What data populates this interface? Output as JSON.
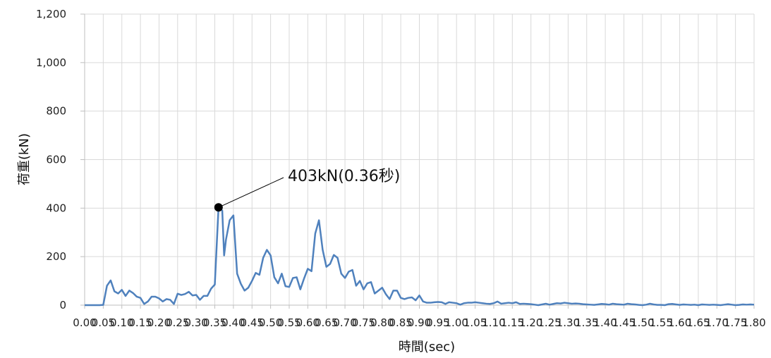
{
  "chart_data": {
    "type": "line",
    "title": "",
    "xlabel": "時間(sec)",
    "ylabel": "荷重(kN)",
    "xlim": [
      0,
      1.8
    ],
    "ylim": [
      0,
      1200
    ],
    "x_ticks": [
      "0.00",
      "0.05",
      "0.10",
      "0.15",
      "0.20",
      "0.25",
      "0.30",
      "0.35",
      "0.40",
      "0.45",
      "0.50",
      "0.55",
      "0.60",
      "0.65",
      "0.70",
      "0.75",
      "0.80",
      "0.85",
      "0.90",
      "0.95",
      "1.00",
      "1.05",
      "1.10",
      "1.15",
      "1.20",
      "1.25",
      "1.30",
      "1.35",
      "1.40",
      "1.45",
      "1.50",
      "1.55",
      "1.60",
      "1.65",
      "1.70",
      "1.75",
      "1.80"
    ],
    "y_ticks": [
      "0",
      "200",
      "400",
      "600",
      "800",
      "1,000",
      "1,200"
    ],
    "grid": true,
    "legend": "none",
    "series": [
      {
        "color": "#4f81bd",
        "points": [
          [
            0.0,
            0
          ],
          [
            0.01,
            0
          ],
          [
            0.02,
            0
          ],
          [
            0.03,
            0
          ],
          [
            0.04,
            0
          ],
          [
            0.05,
            1
          ],
          [
            0.06,
            80
          ],
          [
            0.07,
            102
          ],
          [
            0.08,
            57
          ],
          [
            0.09,
            48
          ],
          [
            0.1,
            63
          ],
          [
            0.11,
            38
          ],
          [
            0.12,
            60
          ],
          [
            0.13,
            50
          ],
          [
            0.14,
            35
          ],
          [
            0.15,
            30
          ],
          [
            0.16,
            5
          ],
          [
            0.17,
            15
          ],
          [
            0.18,
            35
          ],
          [
            0.19,
            35
          ],
          [
            0.2,
            28
          ],
          [
            0.21,
            15
          ],
          [
            0.22,
            25
          ],
          [
            0.23,
            22
          ],
          [
            0.24,
            5
          ],
          [
            0.25,
            47
          ],
          [
            0.26,
            42
          ],
          [
            0.27,
            46
          ],
          [
            0.28,
            55
          ],
          [
            0.29,
            40
          ],
          [
            0.3,
            42
          ],
          [
            0.31,
            22
          ],
          [
            0.32,
            38
          ],
          [
            0.33,
            38
          ],
          [
            0.34,
            68
          ],
          [
            0.35,
            85
          ],
          [
            0.36,
            403
          ],
          [
            0.37,
            390
          ],
          [
            0.375,
            205
          ],
          [
            0.38,
            270
          ],
          [
            0.39,
            350
          ],
          [
            0.4,
            370
          ],
          [
            0.41,
            130
          ],
          [
            0.42,
            88
          ],
          [
            0.43,
            60
          ],
          [
            0.44,
            72
          ],
          [
            0.45,
            100
          ],
          [
            0.46,
            133
          ],
          [
            0.47,
            125
          ],
          [
            0.48,
            195
          ],
          [
            0.49,
            228
          ],
          [
            0.5,
            205
          ],
          [
            0.51,
            115
          ],
          [
            0.52,
            90
          ],
          [
            0.53,
            130
          ],
          [
            0.54,
            78
          ],
          [
            0.55,
            75
          ],
          [
            0.56,
            112
          ],
          [
            0.57,
            115
          ],
          [
            0.58,
            65
          ],
          [
            0.59,
            110
          ],
          [
            0.6,
            150
          ],
          [
            0.61,
            140
          ],
          [
            0.62,
            295
          ],
          [
            0.63,
            350
          ],
          [
            0.64,
            228
          ],
          [
            0.65,
            158
          ],
          [
            0.66,
            170
          ],
          [
            0.67,
            207
          ],
          [
            0.68,
            195
          ],
          [
            0.69,
            130
          ],
          [
            0.7,
            112
          ],
          [
            0.71,
            138
          ],
          [
            0.72,
            145
          ],
          [
            0.73,
            80
          ],
          [
            0.74,
            100
          ],
          [
            0.75,
            65
          ],
          [
            0.76,
            90
          ],
          [
            0.77,
            95
          ],
          [
            0.78,
            48
          ],
          [
            0.79,
            60
          ],
          [
            0.8,
            72
          ],
          [
            0.81,
            45
          ],
          [
            0.82,
            25
          ],
          [
            0.83,
            60
          ],
          [
            0.84,
            60
          ],
          [
            0.85,
            30
          ],
          [
            0.86,
            25
          ],
          [
            0.87,
            30
          ],
          [
            0.88,
            32
          ],
          [
            0.89,
            20
          ],
          [
            0.9,
            40
          ],
          [
            0.91,
            15
          ],
          [
            0.92,
            10
          ],
          [
            0.93,
            10
          ],
          [
            0.94,
            12
          ],
          [
            0.95,
            13
          ],
          [
            0.96,
            12
          ],
          [
            0.97,
            5
          ],
          [
            0.98,
            12
          ],
          [
            0.99,
            10
          ],
          [
            1.0,
            8
          ],
          [
            1.01,
            2
          ],
          [
            1.02,
            8
          ],
          [
            1.03,
            10
          ],
          [
            1.04,
            10
          ],
          [
            1.05,
            12
          ],
          [
            1.06,
            10
          ],
          [
            1.07,
            8
          ],
          [
            1.08,
            6
          ],
          [
            1.09,
            5
          ],
          [
            1.1,
            8
          ],
          [
            1.11,
            15
          ],
          [
            1.12,
            6
          ],
          [
            1.13,
            8
          ],
          [
            1.14,
            10
          ],
          [
            1.15,
            8
          ],
          [
            1.16,
            12
          ],
          [
            1.17,
            5
          ],
          [
            1.18,
            6
          ],
          [
            1.19,
            5
          ],
          [
            1.2,
            4
          ],
          [
            1.21,
            2
          ],
          [
            1.22,
            0
          ],
          [
            1.23,
            3
          ],
          [
            1.24,
            6
          ],
          [
            1.25,
            2
          ],
          [
            1.26,
            5
          ],
          [
            1.27,
            8
          ],
          [
            1.28,
            7
          ],
          [
            1.29,
            10
          ],
          [
            1.3,
            8
          ],
          [
            1.31,
            6
          ],
          [
            1.32,
            7
          ],
          [
            1.33,
            6
          ],
          [
            1.34,
            4
          ],
          [
            1.35,
            3
          ],
          [
            1.36,
            2
          ],
          [
            1.37,
            1
          ],
          [
            1.38,
            3
          ],
          [
            1.39,
            5
          ],
          [
            1.4,
            4
          ],
          [
            1.41,
            2
          ],
          [
            1.42,
            6
          ],
          [
            1.43,
            4
          ],
          [
            1.44,
            3
          ],
          [
            1.45,
            2
          ],
          [
            1.46,
            6
          ],
          [
            1.47,
            4
          ],
          [
            1.48,
            3
          ],
          [
            1.49,
            1
          ],
          [
            1.5,
            0
          ],
          [
            1.51,
            2
          ],
          [
            1.52,
            6
          ],
          [
            1.53,
            3
          ],
          [
            1.54,
            1
          ],
          [
            1.55,
            1
          ],
          [
            1.56,
            0
          ],
          [
            1.57,
            4
          ],
          [
            1.58,
            5
          ],
          [
            1.59,
            3
          ],
          [
            1.6,
            1
          ],
          [
            1.61,
            3
          ],
          [
            1.62,
            2
          ],
          [
            1.63,
            1
          ],
          [
            1.64,
            2
          ],
          [
            1.65,
            0
          ],
          [
            1.66,
            3
          ],
          [
            1.67,
            2
          ],
          [
            1.68,
            1
          ],
          [
            1.69,
            2
          ],
          [
            1.7,
            1
          ],
          [
            1.71,
            0
          ],
          [
            1.72,
            2
          ],
          [
            1.73,
            4
          ],
          [
            1.74,
            2
          ],
          [
            1.75,
            0
          ],
          [
            1.76,
            1
          ],
          [
            1.77,
            3
          ],
          [
            1.78,
            2
          ],
          [
            1.79,
            3
          ],
          [
            1.8,
            2
          ]
        ]
      }
    ],
    "annotations": [
      {
        "text": "403kN(0.36秒)",
        "x": 0.36,
        "y": 403
      }
    ]
  }
}
